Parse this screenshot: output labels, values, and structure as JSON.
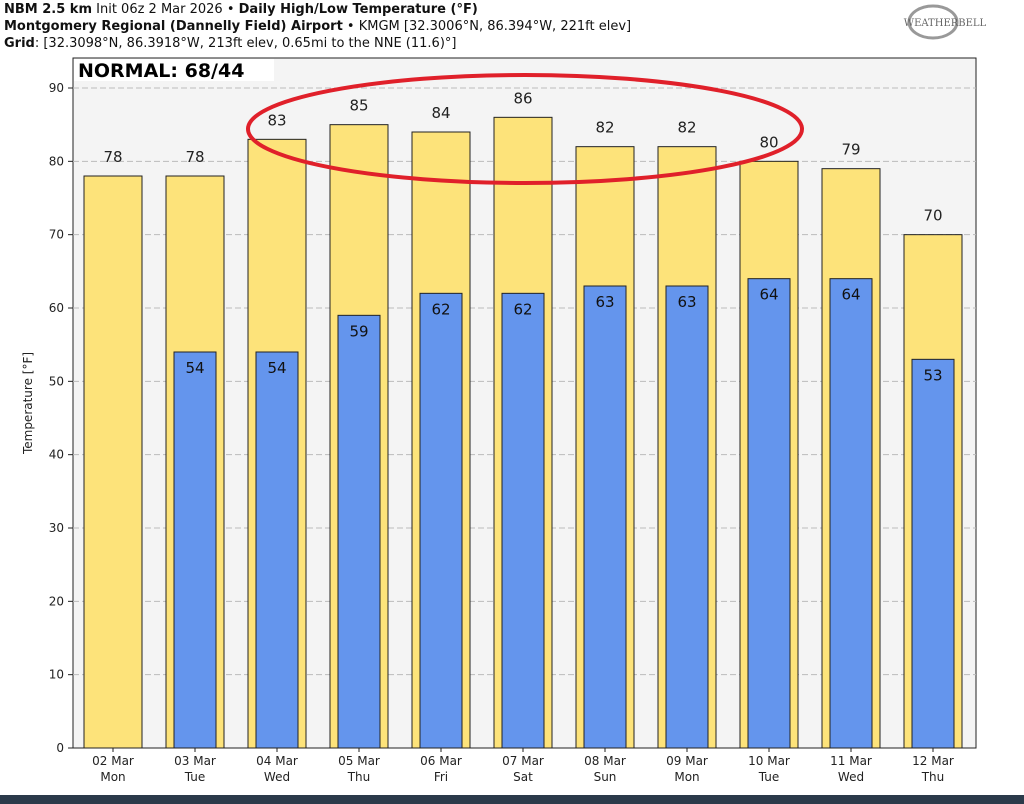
{
  "header": {
    "line1_bold": "NBM 2.5 km",
    "line1_mid": " Init 06z 2 Mar 2026 • ",
    "line1_bold2": "Daily High/Low Temperature (°F)",
    "line2_bold": "Montgomery Regional (Dannelly Field) Airport",
    "line2_rest": " • KMGM [32.3006°N, 86.394°W, 221ft elev]",
    "line3_bold": "Grid",
    "line3_rest": ": [32.3098°N, 86.3918°W, 213ft elev, 0.65mi to the NNE (11.6)°]"
  },
  "logo_text": "WeatherBELL",
  "chart_data": {
    "type": "bar",
    "title": "Daily High/Low Temperature (°F)",
    "annotation": "NORMAL: 68/44",
    "ylabel": "Temperature [°F]",
    "ylim": [
      0,
      90
    ],
    "yticks": [
      0,
      10,
      20,
      30,
      40,
      50,
      60,
      70,
      80,
      90
    ],
    "grid": true,
    "categories": [
      "02 Mar|Mon",
      "03 Mar|Tue",
      "04 Mar|Wed",
      "05 Mar|Thu",
      "06 Mar|Fri",
      "07 Mar|Sat",
      "08 Mar|Sun",
      "09 Mar|Mon",
      "10 Mar|Tue",
      "11 Mar|Wed",
      "12 Mar|Thu"
    ],
    "series": [
      {
        "name": "High",
        "color": "#fde37a",
        "values": [
          78,
          78,
          83,
          85,
          84,
          86,
          82,
          82,
          80,
          79,
          70
        ]
      },
      {
        "name": "Low",
        "color": "#6495ed",
        "values": [
          null,
          54,
          54,
          59,
          62,
          62,
          63,
          63,
          64,
          64,
          53
        ]
      }
    ],
    "highlight": "red ellipse around highs 04 Mar – 10 Mar"
  }
}
